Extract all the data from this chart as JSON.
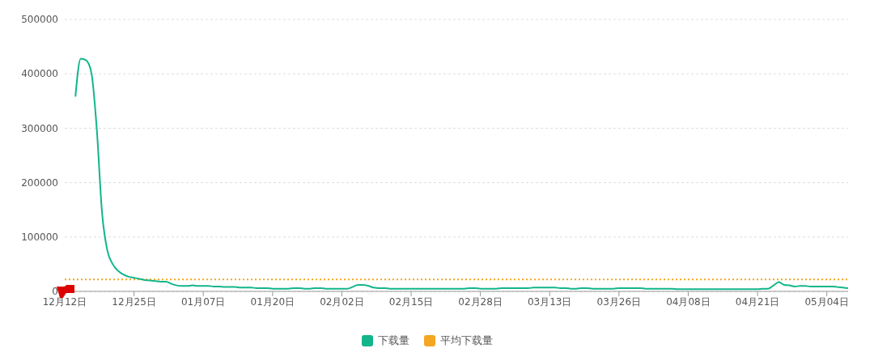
{
  "chart_data": {
    "type": "line",
    "categories": [
      "12月12日",
      null,
      null,
      null,
      null,
      null,
      null,
      null,
      null,
      null,
      null,
      null,
      null,
      "12月25日",
      null,
      null,
      null,
      null,
      null,
      null,
      null,
      null,
      null,
      null,
      null,
      null,
      "01月07日",
      null,
      null,
      null,
      null,
      null,
      null,
      null,
      null,
      null,
      null,
      null,
      null,
      "01月20日",
      null,
      null,
      null,
      null,
      null,
      null,
      null,
      null,
      null,
      null,
      null,
      null,
      "02月02日",
      null,
      null,
      null,
      null,
      null,
      null,
      null,
      null,
      null,
      null,
      null,
      null,
      "02月15日",
      null,
      null,
      null,
      null,
      null,
      null,
      null,
      null,
      null,
      null,
      null,
      null,
      "02月28日",
      null,
      null,
      null,
      null,
      null,
      null,
      null,
      null,
      null,
      null,
      null,
      null,
      "03月13日",
      null,
      null,
      null,
      null,
      null,
      null,
      null,
      null,
      null,
      null,
      null,
      null,
      "03月26日",
      null,
      null,
      null,
      null,
      null,
      null,
      null,
      null,
      null,
      null,
      null,
      null,
      "04月08日",
      null,
      null,
      null,
      null,
      null,
      null,
      null,
      null,
      null,
      null,
      null,
      null,
      "04月21日",
      null,
      null,
      null,
      null,
      null,
      null,
      null,
      null,
      null,
      null,
      null,
      null,
      "05月04日",
      null,
      null,
      null,
      null
    ],
    "series": [
      {
        "name": "下载量",
        "color": "#13b58a",
        "values": [
          null,
          null,
          358000,
          428000,
          425000,
          402000,
          300000,
          145000,
          75000,
          50000,
          38000,
          31000,
          27000,
          25000,
          23000,
          21000,
          20000,
          19000,
          18000,
          18000,
          14000,
          11000,
          10000,
          10000,
          11000,
          10000,
          10000,
          10000,
          9000,
          9000,
          8000,
          8000,
          8000,
          7000,
          7000,
          7000,
          6000,
          6000,
          6000,
          5000,
          5000,
          5000,
          5000,
          6000,
          6000,
          5000,
          5000,
          6000,
          6000,
          5000,
          5000,
          5000,
          5000,
          5000,
          8000,
          12000,
          12000,
          10000,
          7000,
          6000,
          6000,
          5000,
          5000,
          5000,
          5000,
          5000,
          5000,
          5000,
          5000,
          5000,
          5000,
          5000,
          5000,
          5000,
          5000,
          5000,
          6000,
          6000,
          5000,
          5000,
          5000,
          5000,
          6000,
          6000,
          6000,
          6000,
          6000,
          6000,
          7000,
          7000,
          7000,
          7000,
          7000,
          6000,
          6000,
          5000,
          5000,
          6000,
          6000,
          5000,
          5000,
          5000,
          5000,
          5000,
          6000,
          6000,
          6000,
          6000,
          6000,
          5000,
          5000,
          5000,
          5000,
          5000,
          5000,
          4000,
          4000,
          4000,
          4000,
          4000,
          4000,
          4000,
          4000,
          4000,
          4000,
          4000,
          4000,
          4000,
          4000,
          4000,
          4000,
          5000,
          5000,
          11000,
          17000,
          12000,
          11000,
          9000,
          10000,
          10000,
          9000,
          9000,
          9000,
          9000,
          9000,
          8000,
          7000,
          6000
        ]
      }
    ],
    "ref_lines": [
      {
        "axis": "y",
        "value": 22000,
        "label": "平均下载量",
        "color": "#f5a623",
        "line_style": "dotted"
      }
    ],
    "ylim": [
      0,
      500000
    ],
    "yticks": [
      0,
      100000,
      200000,
      300000,
      400000,
      500000
    ],
    "grid": "y",
    "legend": "bottom"
  }
}
